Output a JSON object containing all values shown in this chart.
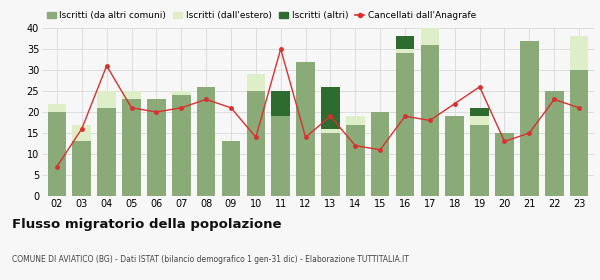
{
  "years": [
    "02",
    "03",
    "04",
    "05",
    "06",
    "07",
    "08",
    "09",
    "10",
    "11",
    "12",
    "13",
    "14",
    "15",
    "16",
    "17",
    "18",
    "19",
    "20",
    "21",
    "22",
    "23"
  ],
  "iscritti_altri_comuni": [
    20,
    13,
    21,
    23,
    23,
    24,
    26,
    13,
    25,
    19,
    32,
    15,
    17,
    20,
    34,
    36,
    19,
    17,
    15,
    37,
    25,
    30
  ],
  "iscritti_estero": [
    2,
    4,
    4,
    2,
    0,
    1,
    0,
    0,
    4,
    0,
    0,
    1,
    2,
    0,
    1,
    4,
    0,
    2,
    0,
    0,
    0,
    8
  ],
  "iscritti_altri": [
    0,
    0,
    0,
    0,
    0,
    0,
    0,
    0,
    0,
    6,
    0,
    10,
    0,
    0,
    3,
    0,
    0,
    2,
    0,
    0,
    0,
    0
  ],
  "cancellati": [
    7,
    16,
    31,
    21,
    20,
    21,
    23,
    21,
    14,
    35,
    14,
    19,
    12,
    11,
    19,
    18,
    22,
    26,
    13,
    15,
    23,
    21
  ],
  "color_altri_comuni": "#8aaa78",
  "color_estero": "#ddeec8",
  "color_altri": "#2e6b2e",
  "color_cancellati": "#d93030",
  "title": "Flusso migratorio della popolazione",
  "subtitle": "COMUNE DI AVIATICO (BG) - Dati ISTAT (bilancio demografico 1 gen-31 dic) - Elaborazione TUTTITALIA.IT",
  "legend_labels": [
    "Iscritti (da altri comuni)",
    "Iscritti (dall'estero)",
    "Iscritti (altri)",
    "Cancellati dall'Anagrafe"
  ],
  "ylim": [
    0,
    40
  ],
  "yticks": [
    0,
    5,
    10,
    15,
    20,
    25,
    30,
    35,
    40
  ],
  "bg_color": "#f7f7f7",
  "grid_color": "#d8d8d8"
}
